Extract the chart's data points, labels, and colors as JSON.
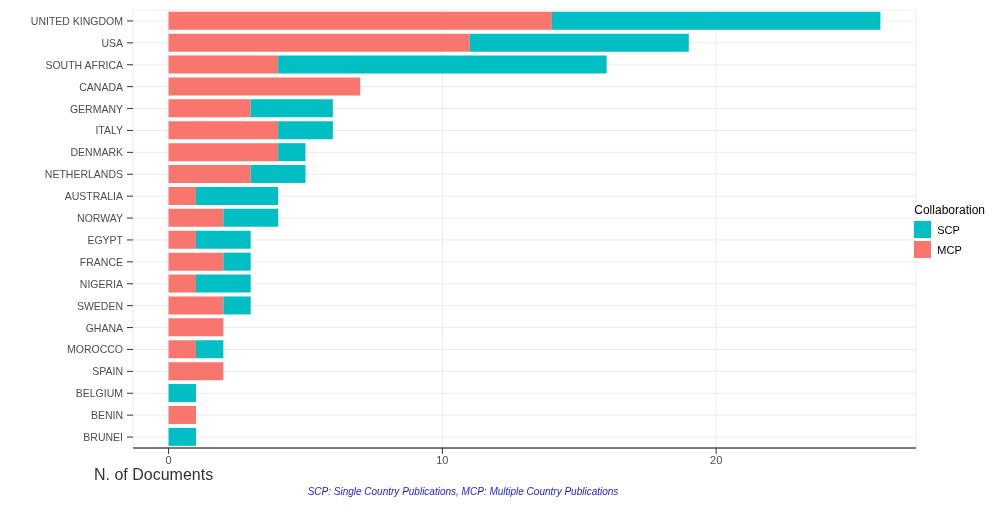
{
  "chart_data": {
    "type": "bar",
    "orientation": "horizontal",
    "stacked": true,
    "xlabel": "N. of Documents",
    "legend_title": "Collaboration",
    "legend": "right",
    "grid": true,
    "categories": [
      "UNITED KINGDOM",
      "USA",
      "SOUTH AFRICA",
      "CANADA",
      "GERMANY",
      "ITALY",
      "DENMARK",
      "NETHERLANDS",
      "AUSTRALIA",
      "NORWAY",
      "EGYPT",
      "FRANCE",
      "NIGERIA",
      "SWEDEN",
      "GHANA",
      "MOROCCO",
      "SPAIN",
      "BELGIUM",
      "BENIN",
      "BRUNEI"
    ],
    "series": [
      {
        "name": "MCP",
        "color": "#f8766d",
        "values": [
          14,
          11,
          4,
          7,
          3,
          4,
          4,
          3,
          1,
          2,
          1,
          2,
          1,
          2,
          2,
          1,
          2,
          0,
          1,
          0
        ]
      },
      {
        "name": "SCP",
        "color": "#00bfc4",
        "values": [
          12,
          8,
          12,
          0,
          3,
          2,
          1,
          2,
          3,
          2,
          2,
          1,
          2,
          1,
          0,
          1,
          0,
          1,
          0,
          1
        ]
      }
    ],
    "xlim": [
      -1.3,
      27.3
    ],
    "xticks": [
      0,
      10,
      20
    ],
    "annotations": [
      "SCP: Single Country Publications, MCP: Multiple Country Publications"
    ]
  }
}
